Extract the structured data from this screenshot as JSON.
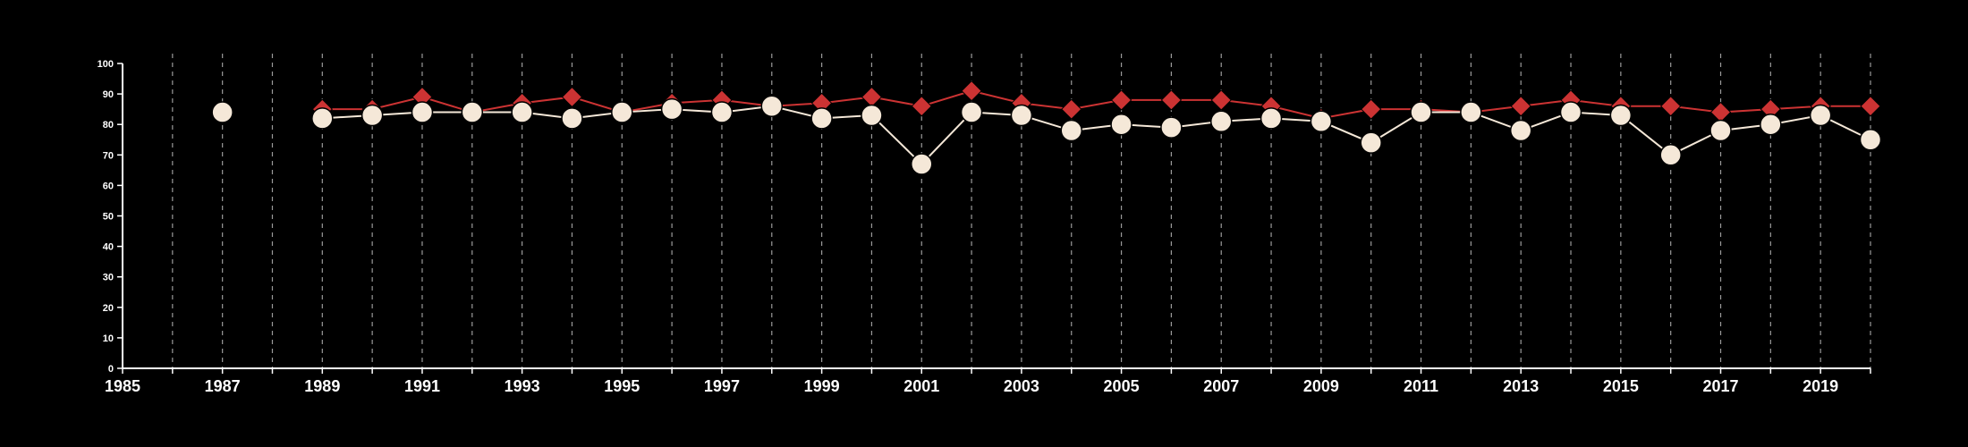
{
  "chart_data": {
    "type": "line",
    "title": "",
    "xlabel": "",
    "ylabel": "",
    "xlim": [
      1985,
      2020
    ],
    "ylim": [
      0,
      100
    ],
    "x_ticks": [
      "1985",
      "1987",
      "1989",
      "1991",
      "1993",
      "1995",
      "1997",
      "1999",
      "2001",
      "2003",
      "2005",
      "2007",
      "2009",
      "2011",
      "2013",
      "2015",
      "2017",
      "2019"
    ],
    "y_ticks": [
      "0",
      "10",
      "20",
      "30",
      "40",
      "50",
      "60",
      "70",
      "80",
      "90",
      "100"
    ],
    "grid": "vertical dashed lines at each year",
    "legend": "none",
    "series": [
      {
        "marker": "diamond",
        "color": "#cc3333",
        "points": [
          [
            1987,
            84
          ],
          [
            1989,
            85
          ],
          [
            1990,
            85
          ],
          [
            1991,
            89
          ],
          [
            1992,
            84
          ],
          [
            1993,
            87
          ],
          [
            1994,
            89
          ],
          [
            1995,
            84
          ],
          [
            1996,
            87
          ],
          [
            1997,
            88
          ],
          [
            1998,
            86
          ],
          [
            1999,
            87
          ],
          [
            2000,
            89
          ],
          [
            2001,
            86
          ],
          [
            2002,
            91
          ],
          [
            2003,
            87
          ],
          [
            2004,
            85
          ],
          [
            2005,
            88
          ],
          [
            2006,
            88
          ],
          [
            2007,
            88
          ],
          [
            2008,
            86
          ],
          [
            2009,
            82
          ],
          [
            2010,
            85
          ],
          [
            2011,
            85
          ],
          [
            2012,
            84
          ],
          [
            2013,
            86
          ],
          [
            2014,
            88
          ],
          [
            2015,
            86
          ],
          [
            2016,
            86
          ],
          [
            2017,
            84
          ],
          [
            2018,
            85
          ],
          [
            2019,
            86
          ],
          [
            2020,
            86
          ]
        ]
      },
      {
        "marker": "circle",
        "color": "#f5e8d8",
        "points": [
          [
            1987,
            84
          ],
          [
            1989,
            82
          ],
          [
            1990,
            83
          ],
          [
            1991,
            84
          ],
          [
            1992,
            84
          ],
          [
            1993,
            84
          ],
          [
            1994,
            82
          ],
          [
            1995,
            84
          ],
          [
            1996,
            85
          ],
          [
            1997,
            84
          ],
          [
            1998,
            86
          ],
          [
            1999,
            82
          ],
          [
            2000,
            83
          ],
          [
            2001,
            67
          ],
          [
            2002,
            84
          ],
          [
            2003,
            83
          ],
          [
            2004,
            78
          ],
          [
            2005,
            80
          ],
          [
            2006,
            79
          ],
          [
            2007,
            81
          ],
          [
            2008,
            82
          ],
          [
            2009,
            81
          ],
          [
            2010,
            74
          ],
          [
            2011,
            84
          ],
          [
            2012,
            84
          ],
          [
            2013,
            78
          ],
          [
            2014,
            84
          ],
          [
            2015,
            83
          ],
          [
            2016,
            70
          ],
          [
            2017,
            78
          ],
          [
            2018,
            80
          ],
          [
            2019,
            83
          ],
          [
            2020,
            75
          ]
        ]
      }
    ]
  }
}
